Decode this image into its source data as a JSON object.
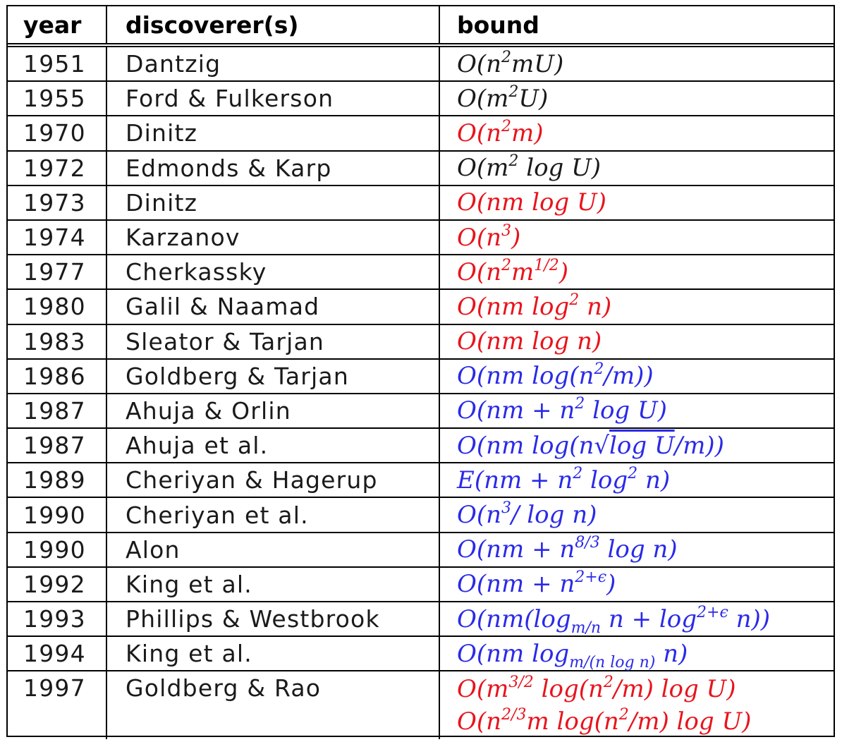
{
  "columns": {
    "year": "year",
    "discoverer": "discoverer(s)",
    "bound": "bound"
  },
  "rows": [
    {
      "year": "1951",
      "discoverer": "Dantzig",
      "bound_html": "O(n<sup>2</sup>mU)",
      "color": "black"
    },
    {
      "year": "1955",
      "discoverer": "Ford & Fulkerson",
      "bound_html": "O(m<sup>2</sup>U)",
      "color": "black"
    },
    {
      "year": "1970",
      "discoverer": "Dinitz",
      "bound_html": "O(n<sup>2</sup>m)",
      "color": "red"
    },
    {
      "year": "1972",
      "discoverer": "Edmonds & Karp",
      "bound_html": "O(m<sup>2</sup> log U)",
      "color": "black"
    },
    {
      "year": "1973",
      "discoverer": "Dinitz",
      "bound_html": "O(nm log U)",
      "color": "red"
    },
    {
      "year": "1974",
      "discoverer": "Karzanov",
      "bound_html": "O(n<sup>3</sup>)",
      "color": "red"
    },
    {
      "year": "1977",
      "discoverer": "Cherkassky",
      "bound_html": "O(n<sup>2</sup>m<sup>1/2</sup>)",
      "color": "red"
    },
    {
      "year": "1980",
      "discoverer": "Galil & Naamad",
      "bound_html": "O(nm log<sup>2</sup> n)",
      "color": "red"
    },
    {
      "year": "1983",
      "discoverer": "Sleator & Tarjan",
      "bound_html": "O(nm log n)",
      "color": "red"
    },
    {
      "year": "1986",
      "discoverer": "Goldberg & Tarjan",
      "bound_html": "O(nm log(n<sup>2</sup>/m))",
      "color": "blue"
    },
    {
      "year": "1987",
      "discoverer": "Ahuja & Orlin",
      "bound_html": "O(nm + n<sup>2</sup> log U)",
      "color": "blue"
    },
    {
      "year": "1987",
      "discoverer": "Ahuja et al.",
      "bound_html": "O(nm log(n√<span style=\"text-decoration:overline\">log U</span>/m))",
      "color": "blue"
    },
    {
      "year": "1989",
      "discoverer": "Cheriyan & Hagerup",
      "bound_html": "E(nm + n<sup>2</sup> log<sup>2</sup> n)",
      "color": "blue"
    },
    {
      "year": "1990",
      "discoverer": "Cheriyan et al.",
      "bound_html": "O(n<sup>3</sup>/ log n)",
      "color": "blue"
    },
    {
      "year": "1990",
      "discoverer": "Alon",
      "bound_html": "O(nm + n<sup>8/3</sup> log n)",
      "color": "blue"
    },
    {
      "year": "1992",
      "discoverer": "King et al.",
      "bound_html": "O(nm + n<sup>2+ϵ</sup>)",
      "color": "blue"
    },
    {
      "year": "1993",
      "discoverer": "Phillips & Westbrook",
      "bound_html": "O(nm(log<sub>m/n</sub> n + log<sup>2+ϵ</sup> n))",
      "color": "blue"
    },
    {
      "year": "1994",
      "discoverer": "King et al.",
      "bound_html": "O(nm log<sub>m/(n log n)</sub> n)",
      "color": "blue"
    }
  ],
  "last_row": {
    "year": "1997",
    "discoverer": "Goldberg & Rao",
    "bound_line1_html": "O(m<sup>3/2</sup> log(n<sup>2</sup>/m) log U)",
    "bound_line2_html": "O(n<sup>2/3</sup>m log(n<sup>2</sup>/m) log U)",
    "color": "red"
  },
  "colors": {
    "red": "#e8141c",
    "blue": "#2a2ae8",
    "black": "#1a1a1a"
  }
}
